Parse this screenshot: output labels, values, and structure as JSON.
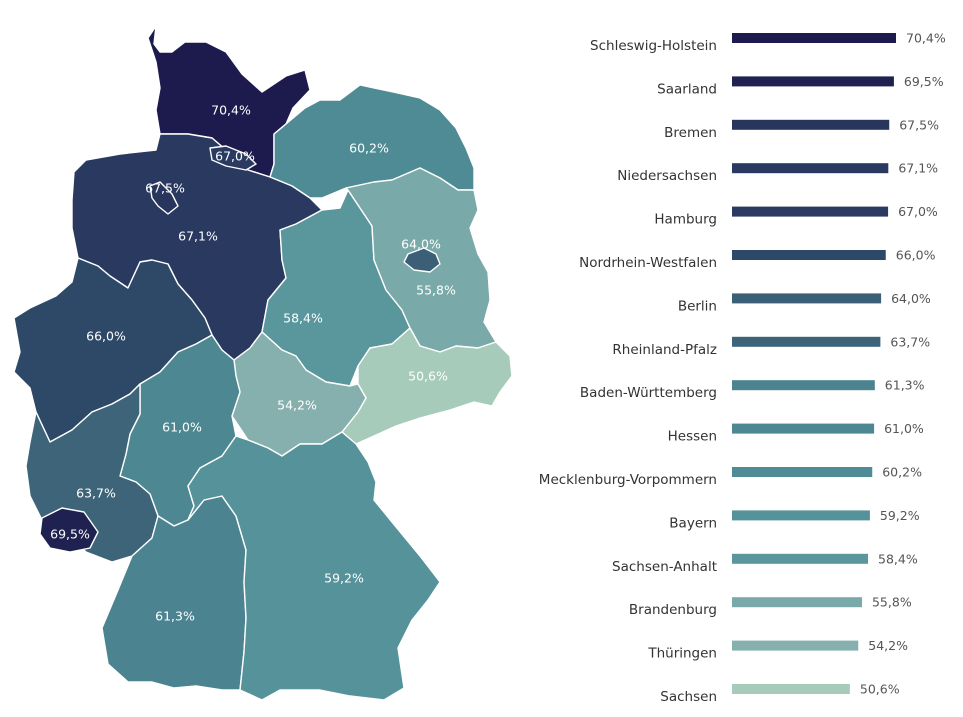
{
  "chart_data": {
    "type": "bar",
    "orientation": "horizontal",
    "unit": "%",
    "decimal_separator": ",",
    "xlim": [
      0,
      75
    ],
    "grid": false,
    "legend": "none",
    "categories": [
      "Schleswig-Holstein",
      "Saarland",
      "Bremen",
      "Niedersachsen",
      "Hamburg",
      "Nordrhein-Westfalen",
      "Berlin",
      "Rheinland-Pfalz",
      "Baden-Württemberg",
      "Hessen",
      "Mecklenburg-Vorpommern",
      "Bayern",
      "Sachsen-Anhalt",
      "Brandenburg",
      "Thüringen",
      "Sachsen"
    ],
    "values": [
      70.4,
      69.5,
      67.5,
      67.1,
      67.0,
      66.0,
      64.0,
      63.7,
      61.3,
      61.0,
      60.2,
      59.2,
      58.4,
      55.8,
      54.2,
      50.6
    ],
    "labels": [
      "70,4%",
      "69,5%",
      "67,5%",
      "67,1%",
      "67,0%",
      "66,0%",
      "64,0%",
      "63,7%",
      "61,3%",
      "61,0%",
      "60,2%",
      "59,2%",
      "58,4%",
      "55,8%",
      "54,2%",
      "50,6%"
    ],
    "colors": [
      "#1d1b4d",
      "#1f2250",
      "#28365e",
      "#29395f",
      "#2a3a60",
      "#2e4867",
      "#3a5f76",
      "#3d6478",
      "#4b8490",
      "#4d8892",
      "#4f8b94",
      "#55929a",
      "#5a979d",
      "#79a9a8",
      "#86b0ad",
      "#a6cbba"
    ],
    "title": "",
    "xlabel": "",
    "ylabel": ""
  },
  "map": {
    "type": "choropleth",
    "region": "Deutschland"
  }
}
